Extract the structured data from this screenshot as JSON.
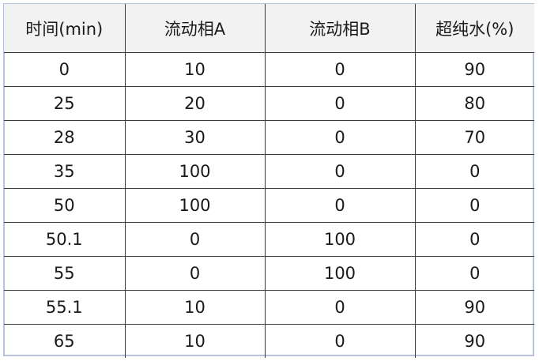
{
  "table": {
    "headers": [
      "时间(min)",
      "流动相A",
      "流动相B",
      "超纯水(%)"
    ],
    "rows": [
      [
        "0",
        "10",
        "0",
        "90"
      ],
      [
        "25",
        "20",
        "0",
        "80"
      ],
      [
        "28",
        "30",
        "0",
        "70"
      ],
      [
        "35",
        "100",
        "0",
        "0"
      ],
      [
        "50",
        "100",
        "0",
        "0"
      ],
      [
        "50.1",
        "0",
        "100",
        "0"
      ],
      [
        "55",
        "0",
        "100",
        "0"
      ],
      [
        "55.1",
        "10",
        "0",
        "90"
      ],
      [
        "65",
        "10",
        "0",
        "90"
      ]
    ]
  },
  "colors": {
    "header_bg": "#f2f2f2",
    "outer_border": "#b7c3da",
    "grid": "#3a3a3a"
  }
}
